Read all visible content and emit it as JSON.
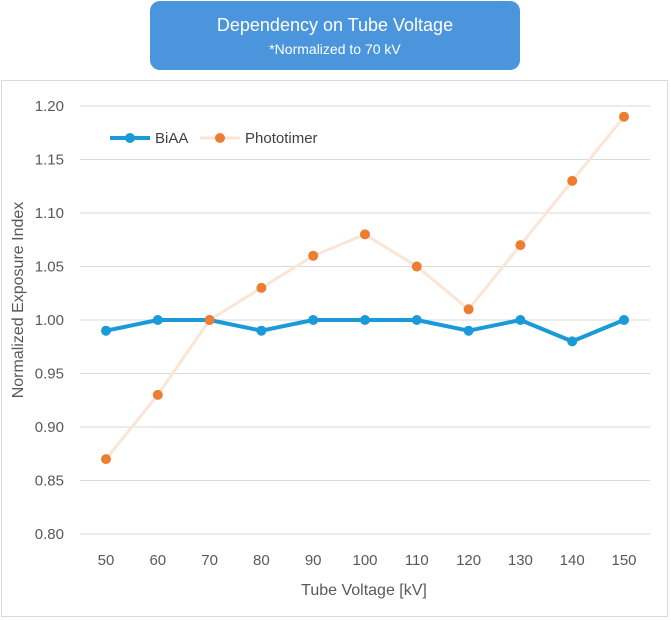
{
  "chart_data": {
    "type": "line",
    "title": "Dependency on Tube Voltage",
    "subtitle": "*Normalized to 70 kV",
    "xlabel": "Tube Voltage [kV]",
    "ylabel": "Normalized Exposure Index",
    "x": [
      50,
      60,
      70,
      80,
      90,
      100,
      110,
      120,
      130,
      140,
      150
    ],
    "ylim": [
      0.8,
      1.2
    ],
    "yticks": [
      "0.80",
      "0.85",
      "0.90",
      "0.95",
      "1.00",
      "1.05",
      "1.10",
      "1.15",
      "1.20"
    ],
    "grid": true,
    "legend": "top-left",
    "series": [
      {
        "name": "BiAA",
        "values": [
          0.99,
          1.0,
          1.0,
          0.99,
          1.0,
          1.0,
          1.0,
          0.99,
          1.0,
          0.98,
          1.0
        ],
        "color": "#1a9ad6",
        "style": "line-markers"
      },
      {
        "name": "Phototimer",
        "values": [
          0.87,
          0.93,
          1.0,
          1.03,
          1.06,
          1.08,
          1.05,
          1.01,
          1.07,
          1.13,
          1.19
        ],
        "color": "#ed7d31",
        "style": "markers-faint-line"
      }
    ]
  }
}
